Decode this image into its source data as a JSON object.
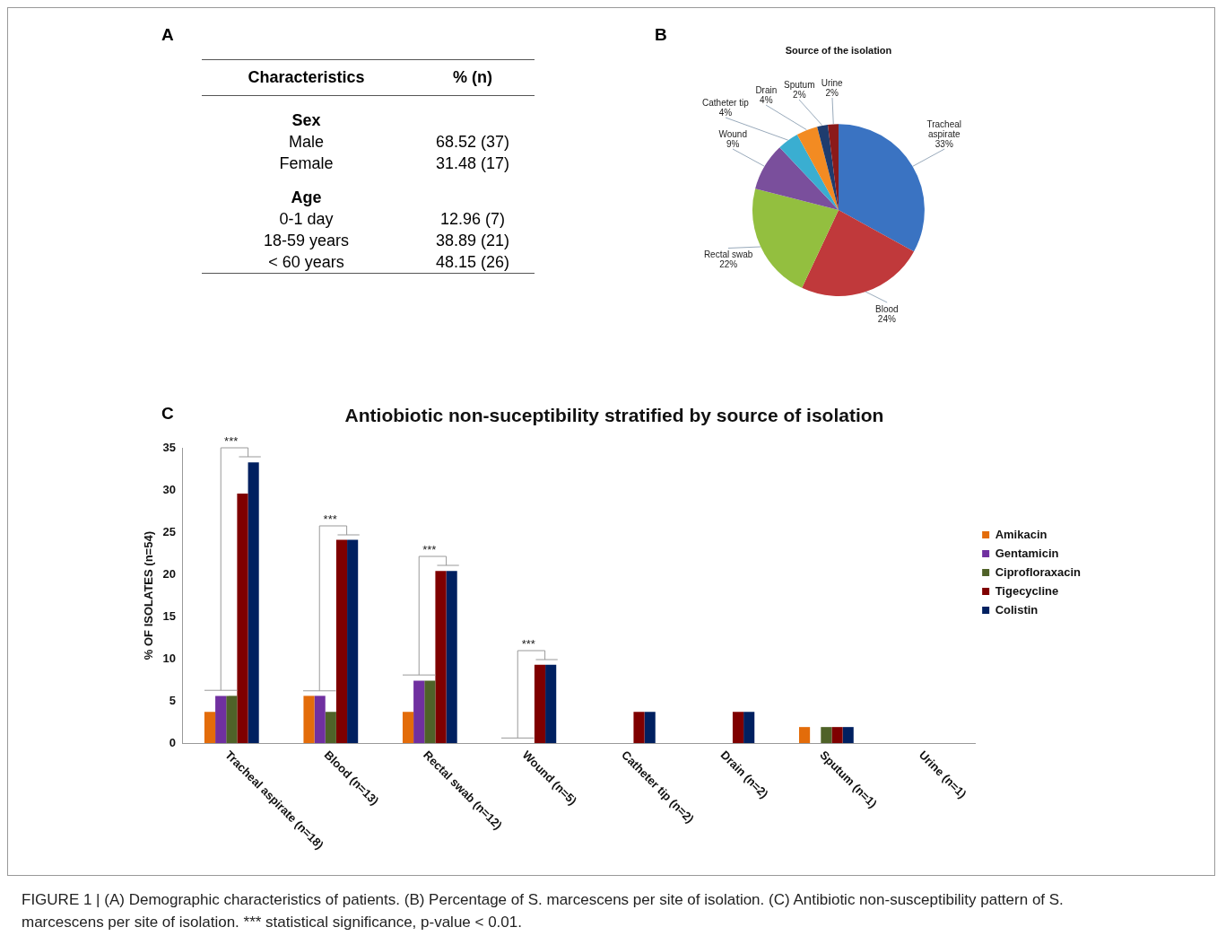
{
  "chart_data": [
    {
      "type": "other",
      "annotations": [
        "A"
      ],
      "xlabel": "Characteristics",
      "ylabel": "% (n)",
      "categories": [
        "Sex",
        "Male",
        "Female",
        "Age",
        "0-1 day",
        "18-59 years",
        "< 60 years"
      ],
      "value_labels": [
        null,
        "68.52 (37)",
        "31.48 (17)",
        null,
        "12.96 (7)",
        "38.89 (21)",
        "48.15 (26)"
      ]
    },
    {
      "type": "pie",
      "title": "Source of the isolation",
      "annotations": [
        "B"
      ],
      "categories": [
        "Tracheal aspirate",
        "Blood",
        "Rectal swab",
        "Wound",
        "Catheter tip",
        "Drain",
        "Sputum",
        "Urine"
      ],
      "values": [
        33,
        24,
        22,
        9,
        4,
        4,
        2,
        2
      ],
      "value_labels": [
        "33%",
        "24%",
        "22%",
        "9%",
        "4%",
        "4%",
        "2%",
        "2%"
      ],
      "colors": [
        "#3a73c2",
        "#c0393b",
        "#93bf3f",
        "#7a4f9c",
        "#3aaed1",
        "#f38b22",
        "#1f3c6e",
        "#8b1a1a"
      ]
    },
    {
      "type": "bar",
      "title": "Antiobiotic non-suceptibility stratified by source of isolation",
      "ylabel": "% OF ISOLATES (n=54)",
      "categories": [
        "Tracheal aspirate (n=18)",
        "Blood (n=13)",
        "Rectal swab (n=12)",
        "Wound (n=5)",
        "Catheter tip (n=2)",
        "Drain (n=2)",
        "Sputum (n=1)",
        "Urine (n=1)"
      ],
      "series": [
        {
          "name": "Amikacin",
          "color": "#e36c0a",
          "values": [
            3.7,
            5.6,
            3.7,
            0,
            0,
            0,
            1.9,
            0
          ]
        },
        {
          "name": "Gentamicin",
          "color": "#7030a0",
          "values": [
            5.6,
            5.6,
            7.4,
            0,
            0,
            0,
            0,
            0
          ]
        },
        {
          "name": "Ciprofloraxacin",
          "color": "#4f6228",
          "values": [
            5.6,
            3.7,
            7.4,
            0,
            0,
            0,
            1.9,
            0
          ]
        },
        {
          "name": "Tigecycline",
          "color": "#7f0000",
          "values": [
            29.6,
            24.1,
            20.4,
            9.3,
            3.7,
            3.7,
            1.9,
            0
          ]
        },
        {
          "name": "Colistin",
          "color": "#002060",
          "values": [
            33.3,
            24.1,
            20.4,
            9.3,
            3.7,
            3.7,
            1.9,
            0
          ]
        }
      ],
      "ylim": [
        0,
        35
      ],
      "yticks": [
        0,
        5,
        10,
        15,
        20,
        25,
        30,
        35
      ],
      "grid": false,
      "legend": "right",
      "annotations": [
        "C",
        "***",
        "***",
        "***",
        "***",
        "FIGURE 1 | (A) Demographic characteristics of patients. (B) Percentage of S. marcescens per site of isolation. (C) Antibiotic non-susceptibility pattern of S. marcescens per site of isolation. *** statistical significance, p-value < 0.01."
      ]
    }
  ]
}
